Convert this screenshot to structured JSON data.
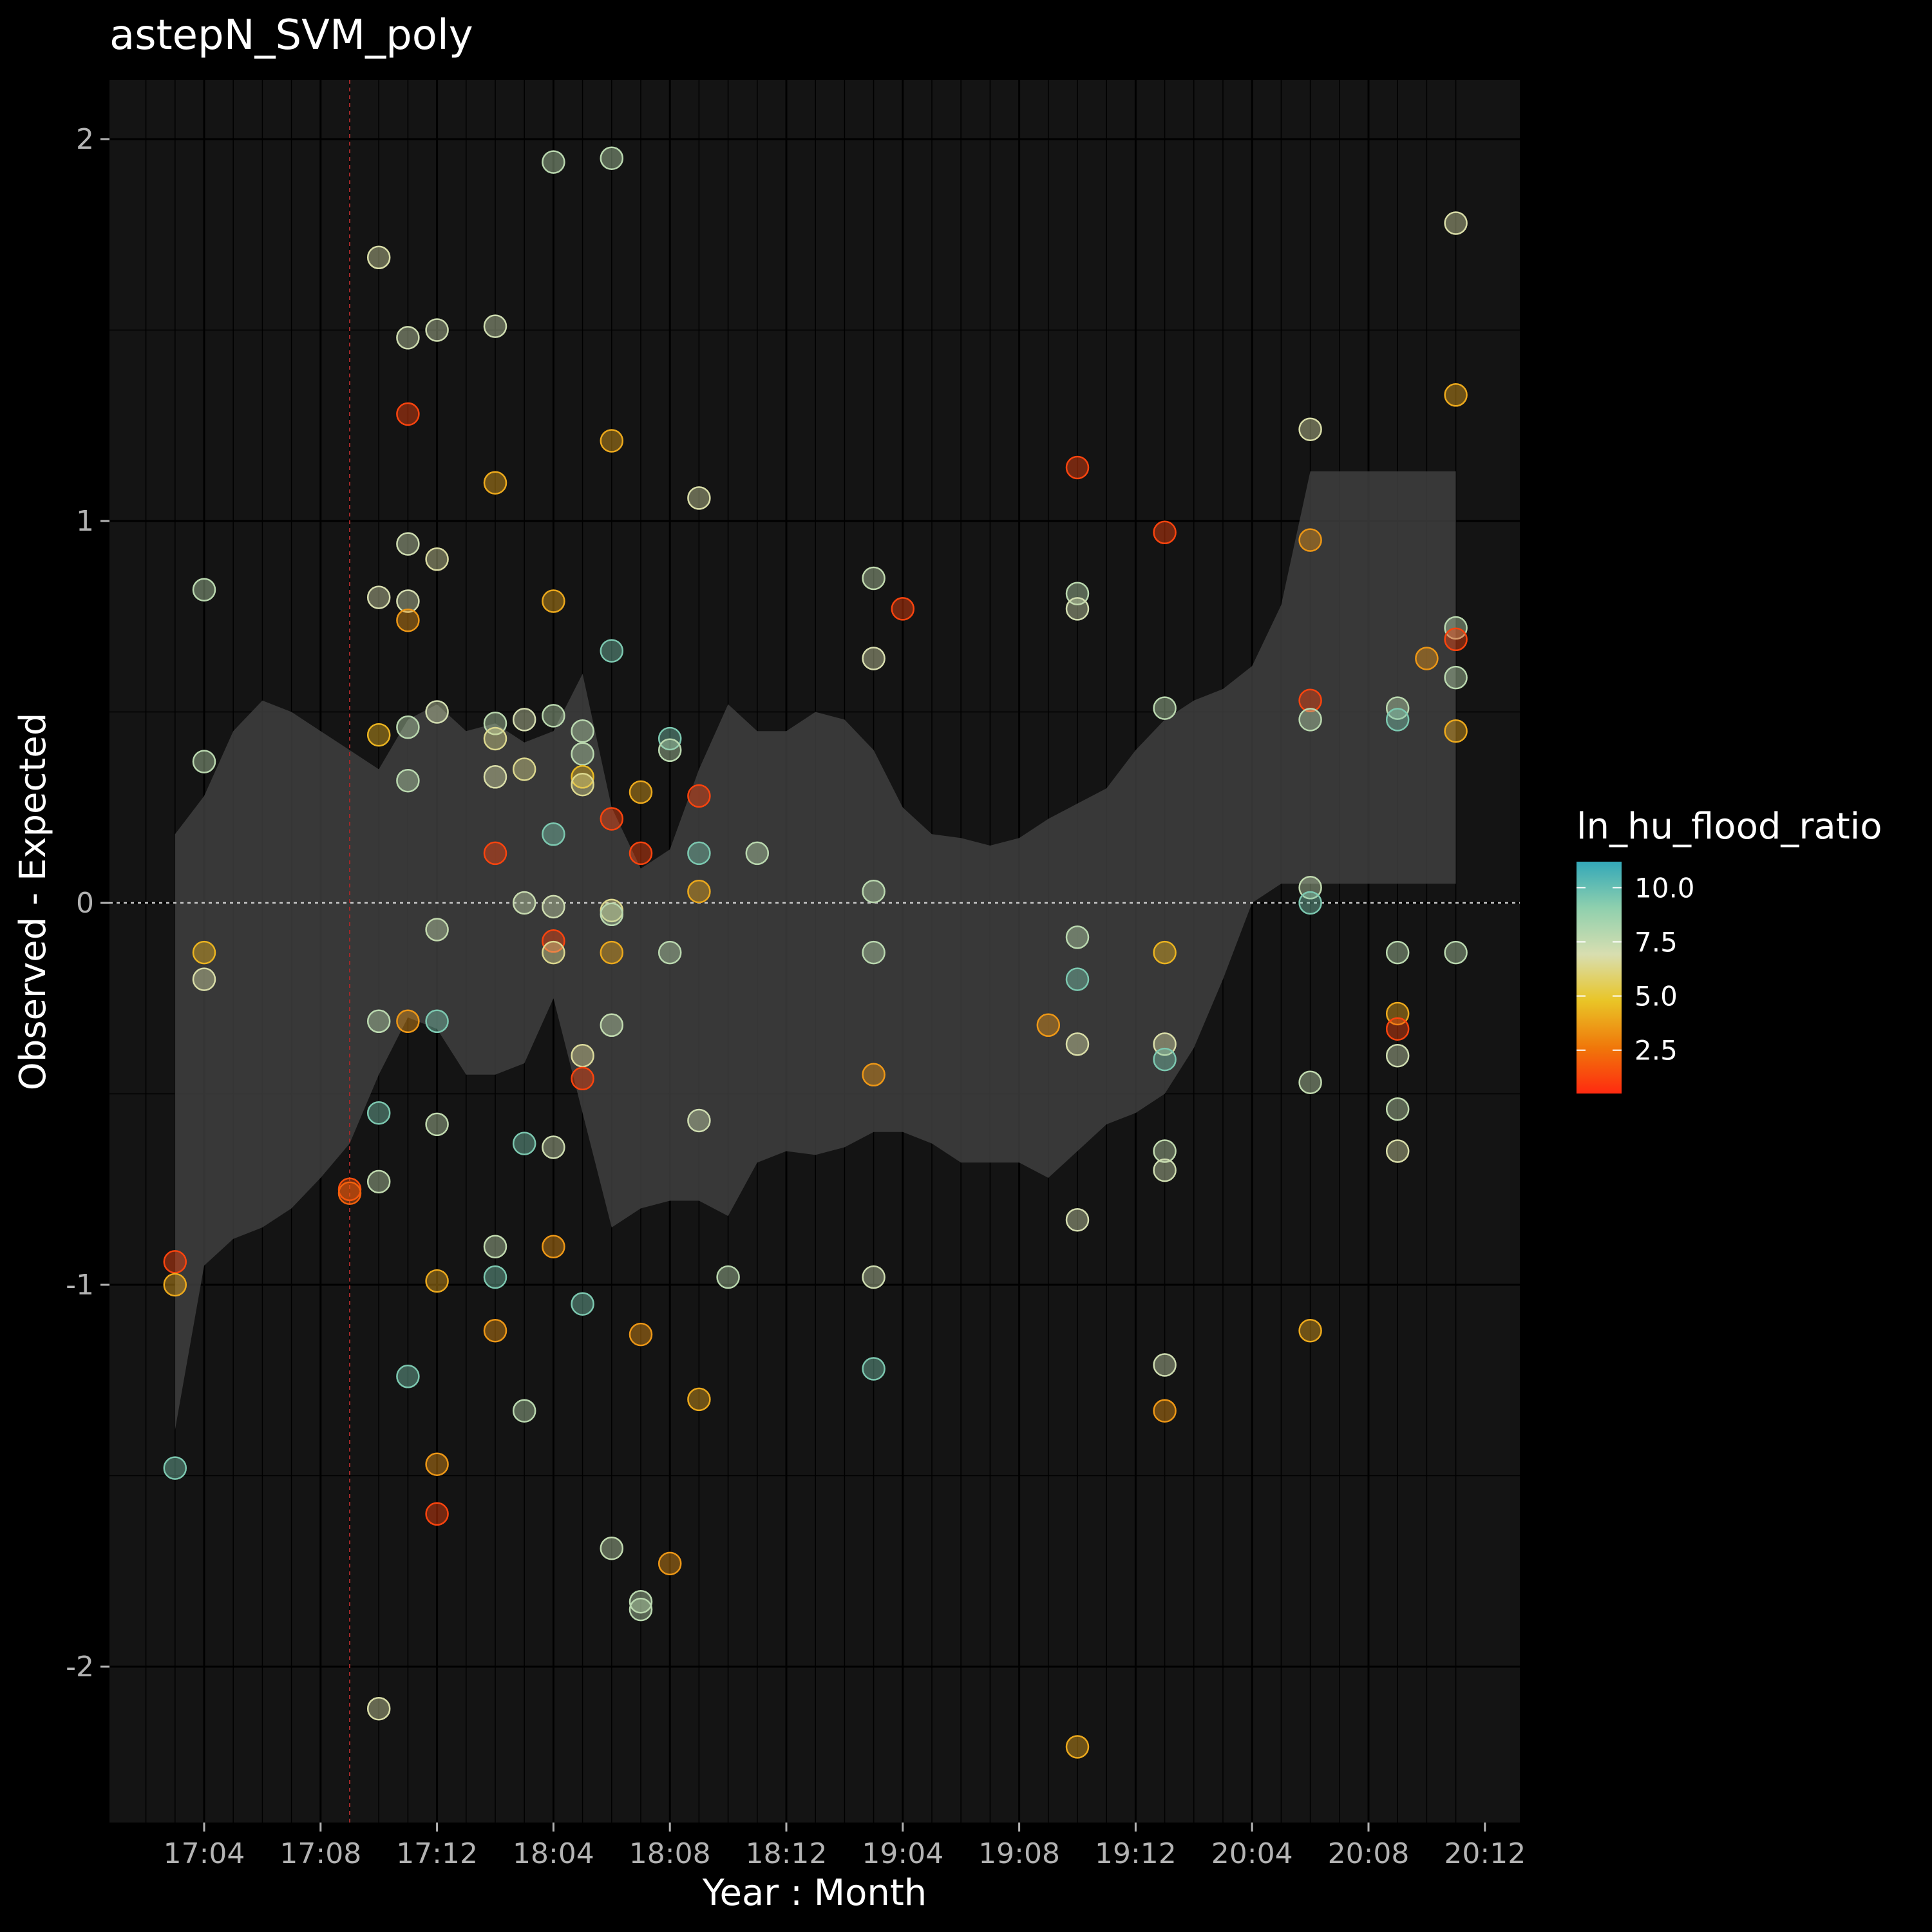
{
  "chart_data": {
    "type": "scatter",
    "title": "astepN_SVM_poly",
    "xlabel": "Year : Month",
    "ylabel": "Observed - Expected",
    "x_ticks": [
      "17:04",
      "17:08",
      "17:12",
      "18:04",
      "18:08",
      "18:12",
      "19:04",
      "19:08",
      "19:12",
      "20:04",
      "20:08",
      "20:12"
    ],
    "ylim": [
      -2.4,
      2.15
    ],
    "y_ticks": [
      -2,
      -1,
      0,
      1,
      2
    ],
    "y_tick_labels": [
      "-2",
      "-1",
      "0",
      "1",
      "2"
    ],
    "reference_vline_x": "17:09",
    "reference_hline_y": 0,
    "legend": {
      "title": "ln_hu_flood_ratio",
      "labels": [
        "10.0",
        "7.5",
        "5.0",
        "2.5"
      ],
      "values": [
        10.0,
        7.5,
        5.0,
        2.5
      ],
      "range": [
        0.5,
        11.2
      ],
      "placement": "right"
    },
    "colors": {
      "background": "#000000",
      "panel": "#141414",
      "ribbon": "#3e3e3e",
      "zero_line": "#c8c8c8",
      "vline": "#a02828",
      "scale_stops": [
        "#ff2a10",
        "#f0780a",
        "#e9c527",
        "#d8deb0",
        "#8fd0ae",
        "#33a8b8"
      ]
    },
    "confidence_band": {
      "x": [
        "17:03",
        "17:04",
        "17:05",
        "17:06",
        "17:07",
        "17:08",
        "17:09",
        "17:10",
        "17:11",
        "17:12",
        "18:01",
        "18:02",
        "18:03",
        "18:04",
        "18:05",
        "18:06",
        "18:07",
        "18:08",
        "18:09",
        "18:10",
        "18:11",
        "18:12",
        "19:01",
        "19:02",
        "19:03",
        "19:04",
        "19:05",
        "19:06",
        "19:07",
        "19:08",
        "19:09",
        "19:10",
        "19:11",
        "19:12",
        "20:01",
        "20:02",
        "20:03",
        "20:04",
        "20:05",
        "20:06",
        "20:07",
        "20:08",
        "20:09",
        "20:10",
        "20:11"
      ],
      "upper": [
        0.18,
        0.28,
        0.45,
        0.53,
        0.5,
        0.45,
        0.4,
        0.35,
        0.48,
        0.52,
        0.45,
        0.47,
        0.42,
        0.45,
        0.6,
        0.25,
        0.09,
        0.14,
        0.35,
        0.52,
        0.45,
        0.45,
        0.5,
        0.48,
        0.4,
        0.25,
        0.18,
        0.17,
        0.15,
        0.17,
        0.22,
        0.26,
        0.3,
        0.4,
        0.48,
        0.53,
        0.56,
        0.62,
        0.78,
        1.13,
        1.13,
        1.13,
        1.13,
        1.13,
        1.13
      ],
      "lower": [
        -1.38,
        -0.95,
        -0.88,
        -0.85,
        -0.8,
        -0.72,
        -0.63,
        -0.45,
        -0.3,
        -0.33,
        -0.45,
        -0.45,
        -0.42,
        -0.25,
        -0.55,
        -0.85,
        -0.8,
        -0.78,
        -0.78,
        -0.82,
        -0.68,
        -0.65,
        -0.66,
        -0.64,
        -0.6,
        -0.6,
        -0.63,
        -0.68,
        -0.68,
        -0.68,
        -0.72,
        -0.65,
        -0.58,
        -0.55,
        -0.5,
        -0.38,
        -0.2,
        0.0,
        0.05,
        0.05,
        0.05,
        0.05,
        0.05,
        0.05,
        0.05
      ]
    },
    "points": [
      {
        "x": "17:03",
        "y": -1.48,
        "c": 9.5
      },
      {
        "x": "17:03",
        "y": -0.94,
        "c": 1.2
      },
      {
        "x": "17:03",
        "y": -1.0,
        "c": 4.0
      },
      {
        "x": "17:04",
        "y": 0.82,
        "c": 7.8
      },
      {
        "x": "17:04",
        "y": 0.37,
        "c": 7.8
      },
      {
        "x": "17:04",
        "y": -0.13,
        "c": 4.3
      },
      {
        "x": "17:04",
        "y": -0.2,
        "c": 6.8
      },
      {
        "x": "17:09",
        "y": -0.75,
        "c": 1.5
      },
      {
        "x": "17:09",
        "y": -0.76,
        "c": 2.0
      },
      {
        "x": "17:10",
        "y": 1.69,
        "c": 6.8
      },
      {
        "x": "17:10",
        "y": 0.8,
        "c": 6.9
      },
      {
        "x": "17:10",
        "y": 0.44,
        "c": 4.3
      },
      {
        "x": "17:10",
        "y": -0.31,
        "c": 7.8
      },
      {
        "x": "17:10",
        "y": -0.55,
        "c": 9.5
      },
      {
        "x": "17:10",
        "y": -0.73,
        "c": 7.6
      },
      {
        "x": "17:10",
        "y": -2.11,
        "c": 6.8
      },
      {
        "x": "17:11",
        "y": 1.48,
        "c": 7.2
      },
      {
        "x": "17:11",
        "y": 1.28,
        "c": 1.2
      },
      {
        "x": "17:11",
        "y": 0.94,
        "c": 7.2
      },
      {
        "x": "17:11",
        "y": 0.79,
        "c": 7.0
      },
      {
        "x": "17:11",
        "y": 0.74,
        "c": 3.5
      },
      {
        "x": "17:11",
        "y": 0.46,
        "c": 7.8
      },
      {
        "x": "17:11",
        "y": 0.32,
        "c": 7.8
      },
      {
        "x": "17:11",
        "y": -0.31,
        "c": 3.5
      },
      {
        "x": "17:11",
        "y": -1.24,
        "c": 9.5
      },
      {
        "x": "17:12",
        "y": 1.5,
        "c": 7.2
      },
      {
        "x": "17:12",
        "y": 0.9,
        "c": 6.7
      },
      {
        "x": "17:12",
        "y": 0.5,
        "c": 7.1
      },
      {
        "x": "17:12",
        "y": -0.07,
        "c": 7.5
      },
      {
        "x": "17:12",
        "y": -0.31,
        "c": 9.5
      },
      {
        "x": "17:12",
        "y": -0.58,
        "c": 7.6
      },
      {
        "x": "17:12",
        "y": -0.99,
        "c": 4.0
      },
      {
        "x": "17:12",
        "y": -1.47,
        "c": 3.5
      },
      {
        "x": "17:12",
        "y": -1.6,
        "c": 1.2
      },
      {
        "x": "18:02",
        "y": 1.51,
        "c": 7.2
      },
      {
        "x": "18:02",
        "y": 1.1,
        "c": 4.0
      },
      {
        "x": "18:02",
        "y": 0.47,
        "c": 7.8
      },
      {
        "x": "18:02",
        "y": 0.43,
        "c": 6.4
      },
      {
        "x": "18:02",
        "y": 0.33,
        "c": 6.8
      },
      {
        "x": "18:02",
        "y": 0.13,
        "c": 1.2
      },
      {
        "x": "18:02",
        "y": -0.9,
        "c": 7.6
      },
      {
        "x": "18:02",
        "y": -0.98,
        "c": 9.5
      },
      {
        "x": "18:02",
        "y": -1.12,
        "c": 3.5
      },
      {
        "x": "18:03",
        "y": 0.48,
        "c": 7.0
      },
      {
        "x": "18:03",
        "y": 0.35,
        "c": 6.4
      },
      {
        "x": "18:03",
        "y": 0.0,
        "c": 7.4
      },
      {
        "x": "18:03",
        "y": -0.63,
        "c": 9.5
      },
      {
        "x": "18:03",
        "y": -1.33,
        "c": 7.8
      },
      {
        "x": "18:04",
        "y": 1.94,
        "c": 7.8
      },
      {
        "x": "18:04",
        "y": 0.79,
        "c": 4.0
      },
      {
        "x": "18:04",
        "y": 0.49,
        "c": 7.8
      },
      {
        "x": "18:04",
        "y": 0.18,
        "c": 9.5
      },
      {
        "x": "18:04",
        "y": -0.01,
        "c": 7.2
      },
      {
        "x": "18:04",
        "y": -0.1,
        "c": 1.2
      },
      {
        "x": "18:04",
        "y": -0.13,
        "c": 6.4
      },
      {
        "x": "18:04",
        "y": -0.64,
        "c": 7.2
      },
      {
        "x": "18:04",
        "y": -0.9,
        "c": 3.5
      },
      {
        "x": "18:05",
        "y": 0.45,
        "c": 7.8
      },
      {
        "x": "18:05",
        "y": 0.39,
        "c": 7.8
      },
      {
        "x": "18:05",
        "y": 0.33,
        "c": 4.5
      },
      {
        "x": "18:05",
        "y": 0.31,
        "c": 6.4
      },
      {
        "x": "18:05",
        "y": -0.4,
        "c": 6.6
      },
      {
        "x": "18:05",
        "y": -0.46,
        "c": 1.2
      },
      {
        "x": "18:05",
        "y": -1.05,
        "c": 9.5
      },
      {
        "x": "18:06",
        "y": 1.95,
        "c": 7.8
      },
      {
        "x": "18:06",
        "y": 1.21,
        "c": 4.0
      },
      {
        "x": "18:06",
        "y": 0.66,
        "c": 9.5
      },
      {
        "x": "18:06",
        "y": 0.22,
        "c": 1.2
      },
      {
        "x": "18:06",
        "y": -0.02,
        "c": 6.4
      },
      {
        "x": "18:06",
        "y": -0.03,
        "c": 7.8
      },
      {
        "x": "18:06",
        "y": -0.13,
        "c": 4.0
      },
      {
        "x": "18:06",
        "y": -0.32,
        "c": 7.6
      },
      {
        "x": "18:06",
        "y": -1.69,
        "c": 7.6
      },
      {
        "x": "18:07",
        "y": 0.29,
        "c": 4.0
      },
      {
        "x": "18:07",
        "y": 0.13,
        "c": 1.2
      },
      {
        "x": "18:07",
        "y": -1.13,
        "c": 3.5
      },
      {
        "x": "18:07",
        "y": -1.83,
        "c": 7.8
      },
      {
        "x": "18:07",
        "y": -1.85,
        "c": 7.8
      },
      {
        "x": "18:08",
        "y": 0.43,
        "c": 9.5
      },
      {
        "x": "18:08",
        "y": 0.4,
        "c": 7.8
      },
      {
        "x": "18:08",
        "y": -0.13,
        "c": 7.8
      },
      {
        "x": "18:08",
        "y": -1.73,
        "c": 3.5
      },
      {
        "x": "18:09",
        "y": 1.06,
        "c": 6.8
      },
      {
        "x": "18:09",
        "y": 0.28,
        "c": 1.2
      },
      {
        "x": "18:09",
        "y": 0.13,
        "c": 9.5
      },
      {
        "x": "18:09",
        "y": 0.03,
        "c": 4.0
      },
      {
        "x": "18:09",
        "y": -0.57,
        "c": 7.2
      },
      {
        "x": "18:09",
        "y": -1.3,
        "c": 4.0
      },
      {
        "x": "18:10",
        "y": -0.98,
        "c": 7.8
      },
      {
        "x": "18:11",
        "y": 0.13,
        "c": 7.8
      },
      {
        "x": "19:03",
        "y": 0.85,
        "c": 7.6
      },
      {
        "x": "19:03",
        "y": 0.64,
        "c": 6.9
      },
      {
        "x": "19:03",
        "y": 0.03,
        "c": 7.8
      },
      {
        "x": "19:03",
        "y": -0.13,
        "c": 7.8
      },
      {
        "x": "19:03",
        "y": -0.45,
        "c": 3.5
      },
      {
        "x": "19:03",
        "y": -0.98,
        "c": 7.2
      },
      {
        "x": "19:03",
        "y": -1.22,
        "c": 9.5
      },
      {
        "x": "19:04",
        "y": 0.77,
        "c": 1.2
      },
      {
        "x": "19:09",
        "y": -0.32,
        "c": 3.5
      },
      {
        "x": "19:10",
        "y": 1.14,
        "c": 1.2
      },
      {
        "x": "19:10",
        "y": 0.81,
        "c": 7.8
      },
      {
        "x": "19:10",
        "y": 0.77,
        "c": 7.1
      },
      {
        "x": "19:10",
        "y": -0.09,
        "c": 7.8
      },
      {
        "x": "19:10",
        "y": -0.2,
        "c": 9.5
      },
      {
        "x": "19:10",
        "y": -0.37,
        "c": 6.8
      },
      {
        "x": "19:10",
        "y": -0.83,
        "c": 7.0
      },
      {
        "x": "19:10",
        "y": -2.21,
        "c": 4.0
      },
      {
        "x": "19:13",
        "y": 0.97,
        "c": 1.2
      },
      {
        "x": "19:13",
        "y": 0.51,
        "c": 7.8
      },
      {
        "x": "19:13",
        "y": -0.13,
        "c": 4.3
      },
      {
        "x": "19:13",
        "y": -0.37,
        "c": 6.8
      },
      {
        "x": "19:13",
        "y": -0.41,
        "c": 9.5
      },
      {
        "x": "19:13",
        "y": -0.65,
        "c": 7.6
      },
      {
        "x": "19:13",
        "y": -0.7,
        "c": 7.2
      },
      {
        "x": "19:13",
        "y": -1.21,
        "c": 7.2
      },
      {
        "x": "19:13",
        "y": -1.33,
        "c": 3.5
      },
      {
        "x": "20:06",
        "y": 1.24,
        "c": 6.8
      },
      {
        "x": "20:06",
        "y": 0.95,
        "c": 3.5
      },
      {
        "x": "20:06",
        "y": 0.53,
        "c": 1.2
      },
      {
        "x": "20:06",
        "y": 0.48,
        "c": 7.8
      },
      {
        "x": "20:06",
        "y": 0.04,
        "c": 7.6
      },
      {
        "x": "20:06",
        "y": 0.0,
        "c": 9.5
      },
      {
        "x": "20:06",
        "y": -0.47,
        "c": 7.6
      },
      {
        "x": "20:06",
        "y": -1.12,
        "c": 4.0
      },
      {
        "x": "20:09",
        "y": 0.51,
        "c": 7.8
      },
      {
        "x": "20:09",
        "y": 0.48,
        "c": 9.5
      },
      {
        "x": "20:09",
        "y": -0.13,
        "c": 7.8
      },
      {
        "x": "20:09",
        "y": -0.29,
        "c": 4.0
      },
      {
        "x": "20:09",
        "y": -0.33,
        "c": 1.2
      },
      {
        "x": "20:09",
        "y": -0.4,
        "c": 7.2
      },
      {
        "x": "20:09",
        "y": -0.54,
        "c": 7.6
      },
      {
        "x": "20:09",
        "y": -0.65,
        "c": 6.8
      },
      {
        "x": "20:10",
        "y": 0.64,
        "c": 3.5
      },
      {
        "x": "20:11",
        "y": 1.78,
        "c": 6.8
      },
      {
        "x": "20:11",
        "y": 1.33,
        "c": 4.0
      },
      {
        "x": "20:11",
        "y": 0.72,
        "c": 7.8
      },
      {
        "x": "20:11",
        "y": 0.69,
        "c": 1.2
      },
      {
        "x": "20:11",
        "y": 0.59,
        "c": 7.8
      },
      {
        "x": "20:11",
        "y": 0.45,
        "c": 4.0
      },
      {
        "x": "20:11",
        "y": -0.13,
        "c": 7.8
      }
    ]
  }
}
